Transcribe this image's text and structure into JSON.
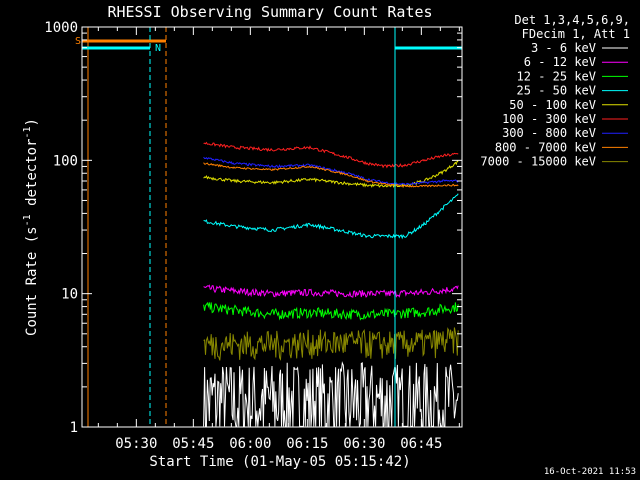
{
  "chart_data": {
    "type": "line",
    "title": "RHESSI Observing Summary Count Rates",
    "xlabel": "Start Time (01-May-05 05:15:42)",
    "ylabel_main": "Count Rate (s",
    "ylabel_sup1": "-1",
    "ylabel_mid": " detector",
    "ylabel_sup2": "-1",
    "ylabel_end": ")",
    "yscale": "log",
    "ylim": [
      1,
      1000
    ],
    "xlim_minutes": [
      0,
      100
    ],
    "x_ticks": [
      {
        "label": "05:30",
        "min": 14.3
      },
      {
        "label": "05:45",
        "min": 29.3
      },
      {
        "label": "06:00",
        "min": 44.3
      },
      {
        "label": "06:15",
        "min": 59.3
      },
      {
        "label": "06:30",
        "min": 74.3
      },
      {
        "label": "06:45",
        "min": 89.3
      }
    ],
    "y_ticks": [
      {
        "label": "1",
        "value": 1
      },
      {
        "label": "10",
        "value": 10
      },
      {
        "label": "100",
        "value": 100
      },
      {
        "label": "1000",
        "value": 1000
      }
    ],
    "legend": {
      "header1": "Det 1,3,4,5,6,9,",
      "header2": "FDecim 1, Att 1",
      "position": "top-right"
    },
    "series": [
      {
        "name": "3 - 6 keV",
        "color": "#ffffff",
        "kind": "counts",
        "x": [
          32,
          40,
          50,
          60,
          70,
          80,
          90,
          99
        ],
        "y": [
          1.6,
          1.6,
          1.6,
          1.6,
          1.6,
          1.6,
          1.6,
          1.6
        ],
        "noise": 0.9
      },
      {
        "name": "6 - 12 keV",
        "color": "#ff00ff",
        "x": [
          32,
          40,
          50,
          60,
          70,
          80,
          90,
          99
        ],
        "y": [
          11,
          10.5,
          10,
          10.2,
          10,
          10,
          10.2,
          11
        ],
        "noise": 0.06
      },
      {
        "name": "12 - 25 keV",
        "color": "#00ff00",
        "x": [
          32,
          40,
          50,
          60,
          70,
          80,
          90,
          99
        ],
        "y": [
          8,
          7.5,
          7,
          7.2,
          7,
          7,
          7.3,
          8
        ],
        "noise": 0.09
      },
      {
        "name": "25 - 50 keV",
        "color": "#00ffff",
        "x": [
          32,
          40,
          50,
          60,
          70,
          75,
          80,
          85,
          90,
          95,
          99
        ],
        "y": [
          35,
          32,
          30,
          33,
          29,
          27,
          27,
          27,
          33,
          44,
          55
        ],
        "noise": 0.03
      },
      {
        "name": "50 - 100 keV",
        "color": "#e0e000",
        "x": [
          32,
          40,
          50,
          60,
          70,
          75,
          80,
          85,
          90,
          95,
          99
        ],
        "y": [
          75,
          70,
          68,
          72,
          67,
          65,
          64,
          65,
          70,
          82,
          98
        ],
        "noise": 0.025
      },
      {
        "name": "100 - 300 keV",
        "color": "#ff2020",
        "x": [
          32,
          40,
          50,
          60,
          70,
          75,
          80,
          85,
          90,
          95,
          99
        ],
        "y": [
          135,
          125,
          120,
          125,
          105,
          95,
          90,
          92,
          100,
          108,
          112
        ],
        "noise": 0.025
      },
      {
        "name": "300 - 800 keV",
        "color": "#2020ff",
        "x": [
          32,
          40,
          50,
          60,
          70,
          75,
          80,
          85,
          90,
          95,
          99
        ],
        "y": [
          105,
          95,
          90,
          92,
          80,
          72,
          68,
          66,
          68,
          70,
          70
        ],
        "noise": 0.02
      },
      {
        "name": "800 - 7000 keV",
        "color": "#ff8000",
        "x": [
          32,
          40,
          50,
          60,
          70,
          75,
          80,
          85,
          90,
          95,
          99
        ],
        "y": [
          95,
          88,
          85,
          90,
          78,
          70,
          66,
          64,
          64,
          65,
          65
        ],
        "noise": 0.015
      },
      {
        "name": "7000 - 15000 keV",
        "color": "#888800",
        "kind": "counts",
        "x": [
          32,
          40,
          50,
          60,
          70,
          80,
          90,
          99
        ],
        "y": [
          4.2,
          4.2,
          4.2,
          4.3,
          4.3,
          4.2,
          4.3,
          4.5
        ],
        "noise": 0.25
      }
    ],
    "flags": [
      {
        "label": "S",
        "color": "#ff8000"
      },
      {
        "label": "N",
        "color": "#00ffff"
      }
    ]
  },
  "timestamp": "16-Oct-2021 11:53"
}
